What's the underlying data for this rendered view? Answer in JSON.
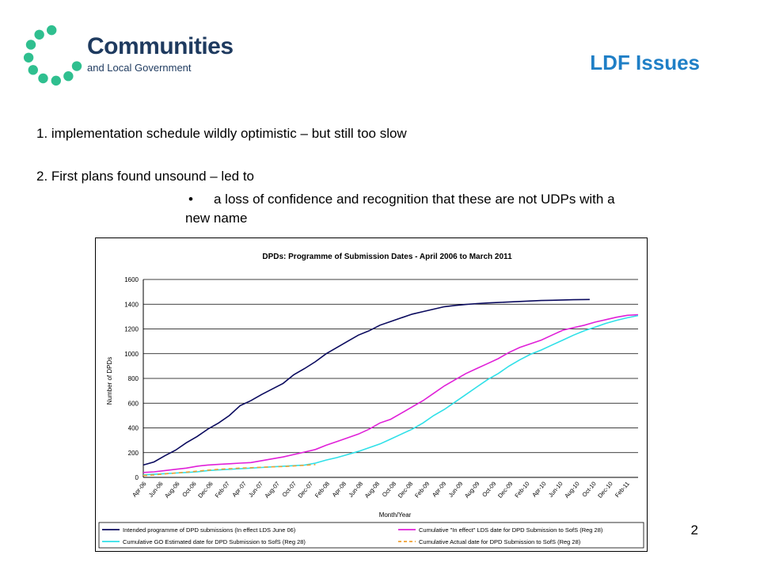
{
  "logo": {
    "line1": "Communities",
    "line2": "and Local Government",
    "colors": {
      "dots": "#2fbf8f",
      "text": "#1e3a5f"
    }
  },
  "slide": {
    "title": "LDF Issues",
    "point1": "1. implementation schedule wildly optimistic – but still too slow",
    "point2": "2. First plans found unsound – led to",
    "bullet": "•",
    "bullet_text_line1": "a loss of confidence and recognition that these are not UDPs with a",
    "bullet_text_line2": "new name",
    "page_number": "2",
    "title_color": "#1f7fc6"
  },
  "chart_data": {
    "type": "line",
    "title": "DPDs: Programme of Submission Dates - April 2006 to March 2011",
    "xlabel": "Month/Year",
    "ylabel": "Number of DPDs",
    "ylim": [
      0,
      1600
    ],
    "yticks": [
      0,
      200,
      400,
      600,
      800,
      1000,
      1200,
      1400,
      1600
    ],
    "grid": true,
    "legend_position": "bottom",
    "xtick_labels": [
      "Apr-06",
      "Jun-06",
      "Aug-06",
      "Oct-06",
      "Dec-06",
      "Feb-07",
      "Apr-07",
      "Jun-07",
      "Aug-07",
      "Oct-07",
      "Dec-07",
      "Feb-08",
      "Apr-08",
      "Jun-08",
      "Aug-08",
      "Oct-08",
      "Dec-08",
      "Feb-09",
      "Apr-09",
      "Jun-09",
      "Aug-09",
      "Oct-09",
      "Dec-09",
      "Feb-10",
      "Apr-10",
      "Jun-10",
      "Aug-10",
      "Oct-10",
      "Dec-10",
      "Feb-11"
    ],
    "x_months": 60,
    "series": [
      {
        "name": "Intended programme of DPD submissions (In effect LDS June 06)",
        "color": "#0a0a5e",
        "dashed": false,
        "points": [
          [
            0,
            100
          ],
          [
            2,
            125
          ],
          [
            4,
            175
          ],
          [
            6,
            220
          ],
          [
            8,
            280
          ],
          [
            10,
            330
          ],
          [
            12,
            390
          ],
          [
            14,
            440
          ],
          [
            16,
            500
          ],
          [
            18,
            580
          ],
          [
            20,
            620
          ],
          [
            22,
            670
          ],
          [
            24,
            715
          ],
          [
            26,
            760
          ],
          [
            28,
            830
          ],
          [
            30,
            880
          ],
          [
            32,
            935
          ],
          [
            34,
            1000
          ],
          [
            36,
            1050
          ],
          [
            38,
            1100
          ],
          [
            40,
            1150
          ],
          [
            42,
            1185
          ],
          [
            44,
            1230
          ],
          [
            46,
            1260
          ],
          [
            48,
            1290
          ],
          [
            50,
            1320
          ],
          [
            52,
            1340
          ],
          [
            54,
            1360
          ],
          [
            56,
            1380
          ],
          [
            58,
            1390
          ],
          [
            60,
            1398
          ],
          [
            62,
            1405
          ],
          [
            64,
            1410
          ],
          [
            66,
            1414
          ],
          [
            68,
            1418
          ],
          [
            70,
            1422
          ],
          [
            72,
            1426
          ],
          [
            74,
            1430
          ],
          [
            76,
            1432
          ],
          [
            78,
            1434
          ],
          [
            80,
            1436
          ],
          [
            83,
            1438
          ]
        ]
      },
      {
        "name": "Cumulative \"In effect\" LDS date for DPD Submission to SofS (Reg 28)",
        "color": "#e020d8",
        "dashed": false,
        "points": [
          [
            0,
            40
          ],
          [
            2,
            45
          ],
          [
            4,
            55
          ],
          [
            6,
            65
          ],
          [
            8,
            75
          ],
          [
            10,
            90
          ],
          [
            12,
            100
          ],
          [
            14,
            105
          ],
          [
            16,
            110
          ],
          [
            18,
            115
          ],
          [
            20,
            120
          ],
          [
            22,
            135
          ],
          [
            24,
            150
          ],
          [
            26,
            165
          ],
          [
            28,
            185
          ],
          [
            30,
            205
          ],
          [
            32,
            225
          ],
          [
            34,
            260
          ],
          [
            36,
            290
          ],
          [
            38,
            320
          ],
          [
            40,
            350
          ],
          [
            42,
            390
          ],
          [
            44,
            440
          ],
          [
            46,
            470
          ],
          [
            48,
            520
          ],
          [
            50,
            570
          ],
          [
            52,
            620
          ],
          [
            54,
            680
          ],
          [
            56,
            740
          ],
          [
            58,
            790
          ],
          [
            60,
            840
          ],
          [
            62,
            880
          ],
          [
            64,
            920
          ],
          [
            66,
            960
          ],
          [
            68,
            1010
          ],
          [
            70,
            1050
          ],
          [
            72,
            1080
          ],
          [
            74,
            1110
          ],
          [
            76,
            1150
          ],
          [
            78,
            1190
          ],
          [
            80,
            1210
          ],
          [
            82,
            1230
          ],
          [
            84,
            1255
          ],
          [
            86,
            1275
          ],
          [
            88,
            1295
          ],
          [
            90,
            1310
          ],
          [
            92,
            1315
          ]
        ]
      },
      {
        "name": "Cumulative GO Estimated date for DPD Submission to SofS (Reg 28)",
        "color": "#2fe0e8",
        "dashed": false,
        "points": [
          [
            0,
            20
          ],
          [
            2,
            25
          ],
          [
            4,
            30
          ],
          [
            6,
            35
          ],
          [
            8,
            40
          ],
          [
            10,
            45
          ],
          [
            12,
            55
          ],
          [
            14,
            60
          ],
          [
            16,
            65
          ],
          [
            18,
            70
          ],
          [
            20,
            75
          ],
          [
            22,
            80
          ],
          [
            24,
            85
          ],
          [
            26,
            90
          ],
          [
            28,
            95
          ],
          [
            30,
            100
          ],
          [
            32,
            115
          ],
          [
            34,
            140
          ],
          [
            36,
            160
          ],
          [
            38,
            185
          ],
          [
            40,
            210
          ],
          [
            42,
            240
          ],
          [
            44,
            270
          ],
          [
            46,
            310
          ],
          [
            48,
            350
          ],
          [
            50,
            390
          ],
          [
            52,
            440
          ],
          [
            54,
            500
          ],
          [
            56,
            550
          ],
          [
            58,
            610
          ],
          [
            60,
            670
          ],
          [
            62,
            730
          ],
          [
            64,
            790
          ],
          [
            66,
            840
          ],
          [
            68,
            900
          ],
          [
            70,
            950
          ],
          [
            72,
            995
          ],
          [
            74,
            1030
          ],
          [
            76,
            1070
          ],
          [
            78,
            1110
          ],
          [
            80,
            1150
          ],
          [
            82,
            1185
          ],
          [
            84,
            1215
          ],
          [
            86,
            1245
          ],
          [
            88,
            1270
          ],
          [
            90,
            1290
          ],
          [
            92,
            1308
          ]
        ]
      },
      {
        "name": "Cumulative Actual date for DPD Submission to SofS (Reg 28)",
        "color": "#f0a030",
        "dashed": true,
        "points": [
          [
            0,
            15
          ],
          [
            2,
            20
          ],
          [
            4,
            28
          ],
          [
            6,
            35
          ],
          [
            8,
            42
          ],
          [
            10,
            50
          ],
          [
            12,
            58
          ],
          [
            14,
            65
          ],
          [
            16,
            70
          ],
          [
            18,
            75
          ],
          [
            20,
            78
          ],
          [
            22,
            82
          ],
          [
            24,
            85
          ],
          [
            26,
            88
          ],
          [
            28,
            92
          ],
          [
            30,
            98
          ],
          [
            32,
            104
          ]
        ]
      }
    ]
  }
}
